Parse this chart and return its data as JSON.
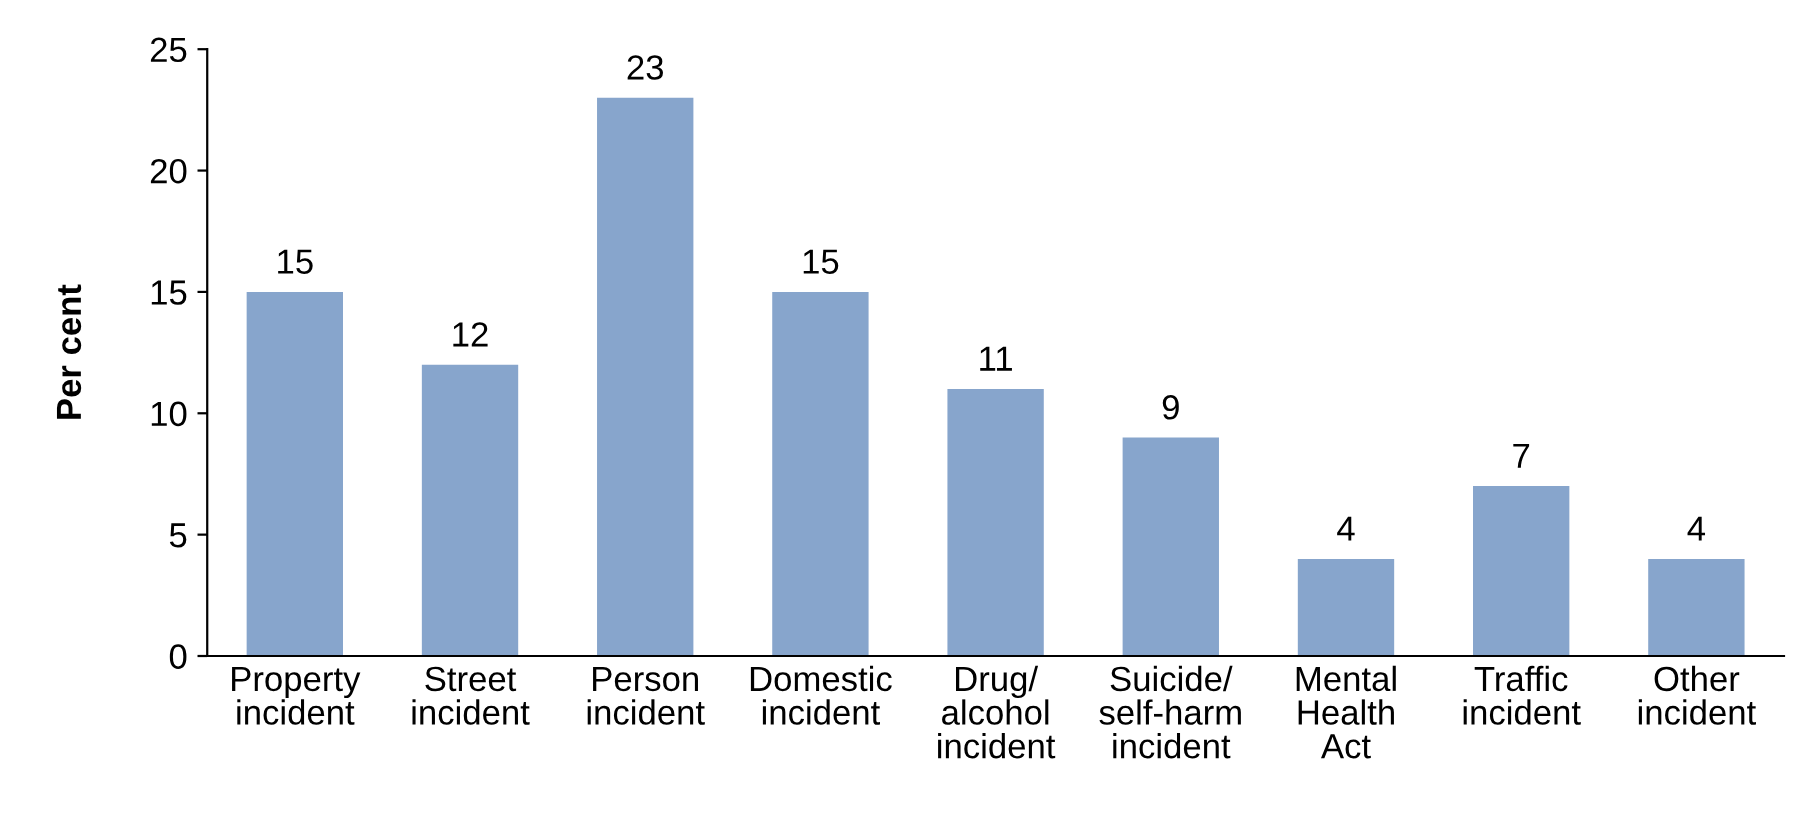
{
  "chart_data": {
    "type": "bar",
    "ylabel": "Per cent",
    "categories": [
      "Property\nincident",
      "Street\nincident",
      "Person\nincident",
      "Domestic\nincident",
      "Drug/\nalcohol\nincident",
      "Suicide/\nself-harm\nincident",
      "Mental\nHealth\nAct",
      "Traffic\nincident",
      "Other\nincident"
    ],
    "values": [
      15,
      12,
      23,
      15,
      11,
      9,
      4,
      7,
      4
    ],
    "color": "#87a5cc",
    "ylim": [
      0,
      25
    ],
    "yticks": [
      0,
      5,
      10,
      15,
      20,
      25
    ],
    "grid": false,
    "data_labels": true
  }
}
